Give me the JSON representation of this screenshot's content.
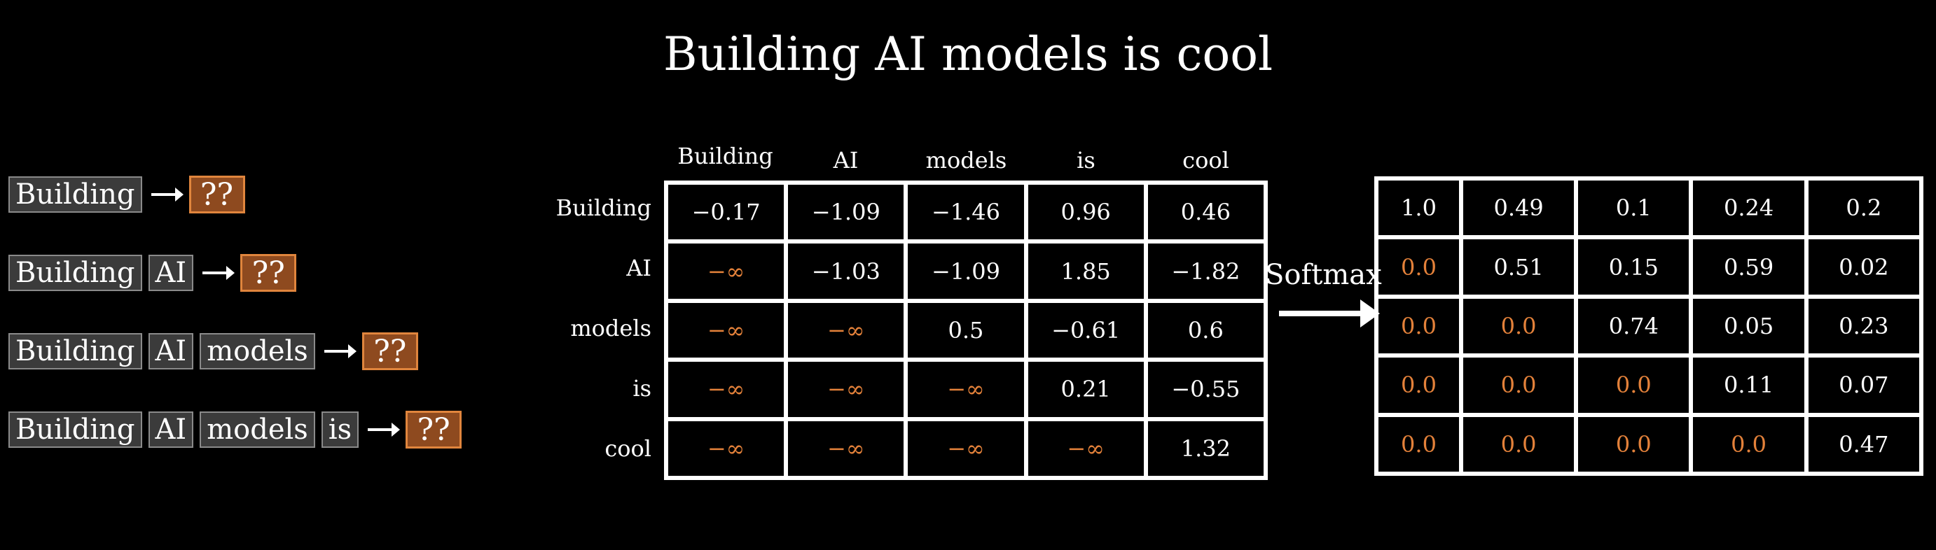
{
  "title": "Building AI models is cool",
  "sequences": [
    {
      "tokens": [
        "Building"
      ],
      "target": "??"
    },
    {
      "tokens": [
        "Building",
        "AI"
      ],
      "target": "??"
    },
    {
      "tokens": [
        "Building",
        "AI",
        "models"
      ],
      "target": "??"
    },
    {
      "tokens": [
        "Building",
        "AI",
        "models",
        "is"
      ],
      "target": "??"
    }
  ],
  "scores": {
    "columns": [
      "Building",
      "AI",
      "models",
      "is",
      "cool"
    ],
    "rows": [
      "Building",
      "AI",
      "models",
      "is",
      "cool"
    ],
    "cells": [
      [
        "−0.17",
        "−1.09",
        "−1.46",
        "0.96",
        "0.46"
      ],
      [
        "−∞",
        "−1.03",
        "−1.09",
        "1.85",
        "−1.82"
      ],
      [
        "−∞",
        "−∞",
        "0.5",
        "−0.61",
        "0.6"
      ],
      [
        "−∞",
        "−∞",
        "−∞",
        "0.21",
        "−0.55"
      ],
      [
        "−∞",
        "−∞",
        "−∞",
        "−∞",
        "1.32"
      ]
    ]
  },
  "softmax_label": "Softmax",
  "probabilities": {
    "cells": [
      [
        "1.0",
        "0.49",
        "0.1",
        "0.24",
        "0.2"
      ],
      [
        "0.0",
        "0.51",
        "0.15",
        "0.59",
        "0.02"
      ],
      [
        "0.0",
        "0.0",
        "0.74",
        "0.05",
        "0.23"
      ],
      [
        "0.0",
        "0.0",
        "0.0",
        "0.11",
        "0.07"
      ],
      [
        "0.0",
        "0.0",
        "0.0",
        "0.0",
        "0.47"
      ]
    ]
  },
  "colors": {
    "accent": "#e3813a",
    "token_bg": "#3b3b3b",
    "target_bg": "#8e4a1f"
  }
}
